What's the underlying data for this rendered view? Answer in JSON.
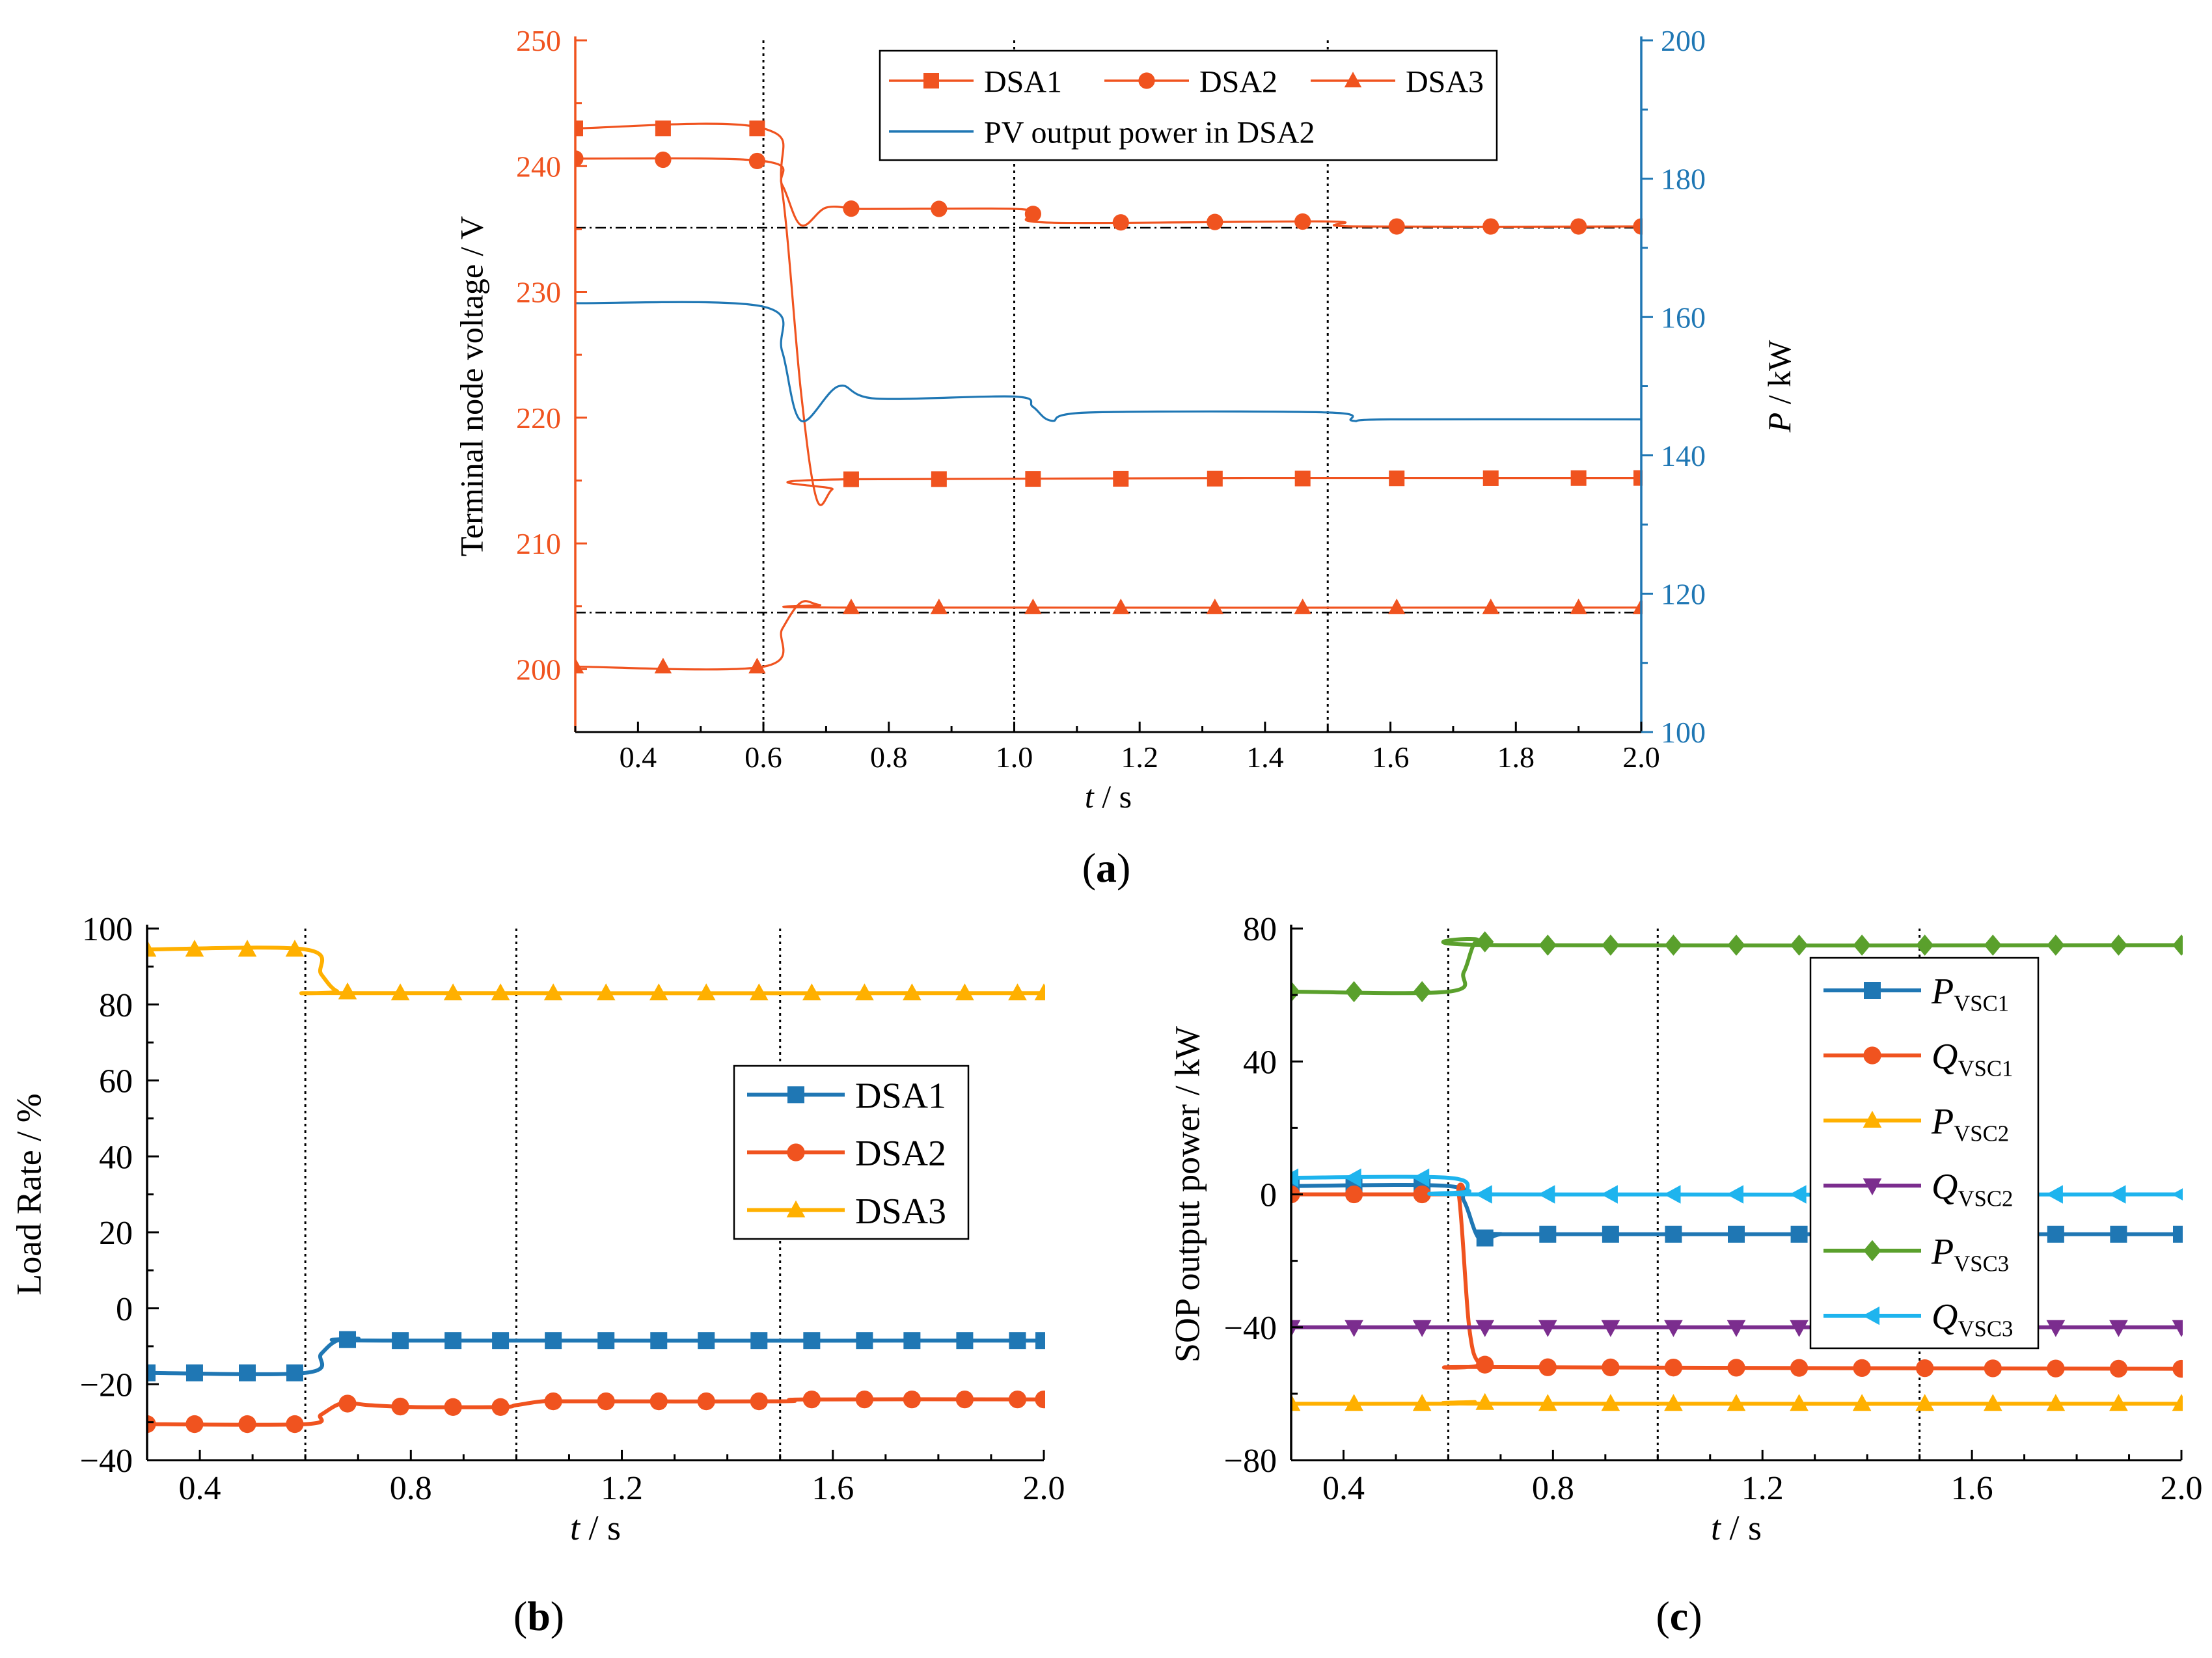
{
  "figure": {
    "colors": {
      "orange": "#F0531F",
      "blue": "#1F77B4",
      "yellow": "#FFB000",
      "purple": "#7B2D8E",
      "green": "#5AA02C",
      "cyan": "#1EB4EE",
      "black": "#000000"
    }
  },
  "chart_data": [
    {
      "id": "a",
      "type": "line",
      "panel_label": "(a)",
      "panel_letter": "a",
      "xlabel": "t / s",
      "xlabel_var": "t",
      "xlabel_unit": " / s",
      "ylabel": "Terminal node voltage / V",
      "ylabel_right": "P / kW",
      "ylabel_right_var": "P",
      "ylabel_right_unit": " / kW",
      "xlim": [
        0.3,
        2.0
      ],
      "ylim": [
        195,
        250
      ],
      "ylim_right": [
        100,
        200
      ],
      "xticks": [
        "0.4",
        "0.6",
        "0.8",
        "1.0",
        "1.2",
        "1.4",
        "1.6",
        "1.8",
        "2.0"
      ],
      "yticks": [
        "200",
        "210",
        "220",
        "230",
        "240",
        "250"
      ],
      "yticks_right": [
        "100",
        "120",
        "140",
        "160",
        "180",
        "200"
      ],
      "vlines": [
        0.6,
        1.0,
        1.5
      ],
      "hlines": [
        235.1,
        204.5
      ],
      "legend": "top-right",
      "series": [
        {
          "name": "DSA1",
          "marker": "square",
          "color": "#F0531F",
          "axis": "left",
          "points": [
            [
              0.3,
              243
            ],
            [
              0.6,
              243
            ],
            [
              0.63,
              238
            ],
            [
              0.66,
              222
            ],
            [
              0.685,
              213.5
            ],
            [
              0.71,
              214.3
            ],
            [
              0.74,
              215.1
            ],
            [
              2.0,
              215.2
            ]
          ],
          "marker_x": [
            0.3,
            0.44,
            0.59,
            0.74,
            0.88,
            1.03,
            1.17,
            1.32,
            1.46,
            1.61,
            1.76,
            1.9,
            2.0
          ]
        },
        {
          "name": "DSA2",
          "marker": "circle",
          "color": "#F0531F",
          "axis": "left",
          "points": [
            [
              0.3,
              240.6
            ],
            [
              0.6,
              240.4
            ],
            [
              0.63,
              238.5
            ],
            [
              0.66,
              235.3
            ],
            [
              0.7,
              236.7
            ],
            [
              0.75,
              236.6
            ],
            [
              0.8,
              236.6
            ],
            [
              1.0,
              236.6
            ],
            [
              1.03,
              236.2
            ],
            [
              1.06,
              235.5
            ],
            [
              1.5,
              235.6
            ],
            [
              1.54,
              235.2
            ],
            [
              2.0,
              235.2
            ]
          ],
          "marker_x": [
            0.3,
            0.44,
            0.59,
            0.74,
            0.88,
            1.03,
            1.17,
            1.32,
            1.46,
            1.61,
            1.76,
            1.9,
            2.0
          ]
        },
        {
          "name": "DSA3",
          "marker": "triangle-up",
          "color": "#F0531F",
          "axis": "left",
          "points": [
            [
              0.3,
              200.2
            ],
            [
              0.6,
              200.2
            ],
            [
              0.63,
              203.2
            ],
            [
              0.66,
              205.3
            ],
            [
              0.69,
              205.1
            ],
            [
              0.74,
              204.9
            ],
            [
              2.0,
              204.9
            ]
          ],
          "marker_x": [
            0.3,
            0.44,
            0.59,
            0.74,
            0.88,
            1.03,
            1.17,
            1.32,
            1.46,
            1.61,
            1.76,
            1.9,
            2.0
          ]
        },
        {
          "name": "PV output power in DSA2",
          "marker": "none",
          "color": "#1F77B4",
          "axis": "right",
          "points": [
            [
              0.3,
              162
            ],
            [
              0.6,
              161.5
            ],
            [
              0.63,
              155
            ],
            [
              0.66,
              145
            ],
            [
              0.72,
              150
            ],
            [
              0.78,
              148.2
            ],
            [
              1.0,
              148.5
            ],
            [
              1.03,
              147
            ],
            [
              1.06,
              145
            ],
            [
              1.12,
              146.2
            ],
            [
              1.5,
              146.2
            ],
            [
              1.54,
              145
            ],
            [
              1.6,
              145.2
            ],
            [
              2.0,
              145.2
            ]
          ]
        }
      ]
    },
    {
      "id": "b",
      "type": "line",
      "panel_label": "(b)",
      "panel_letter": "b",
      "xlabel": "t / s",
      "xlabel_var": "t",
      "xlabel_unit": " / s",
      "ylabel": "Load Rate / %",
      "xlim": [
        0.3,
        2.0
      ],
      "ylim": [
        -40,
        100
      ],
      "xticks": [
        "0.4",
        "0.8",
        "1.2",
        "1.6",
        "2.0"
      ],
      "yticks": [
        "−40",
        "−20",
        "0",
        "20",
        "40",
        "60",
        "80",
        "100"
      ],
      "vlines": [
        0.6,
        1.0,
        1.5
      ],
      "legend": "center-right",
      "series": [
        {
          "name": "DSA1",
          "marker": "square",
          "color": "#1F77B4",
          "points": [
            [
              0.3,
              -17
            ],
            [
              0.6,
              -17
            ],
            [
              0.63,
              -12
            ],
            [
              0.66,
              -8.5
            ],
            [
              0.7,
              -8
            ],
            [
              0.76,
              -8.5
            ],
            [
              2.0,
              -8.5
            ]
          ],
          "marker_x": [
            0.3,
            0.39,
            0.49,
            0.58,
            0.68,
            0.78,
            0.88,
            0.97,
            1.07,
            1.17,
            1.27,
            1.36,
            1.46,
            1.56,
            1.66,
            1.75,
            1.85,
            1.95,
            2.0
          ]
        },
        {
          "name": "DSA2",
          "marker": "circle",
          "color": "#F0531F",
          "points": [
            [
              0.3,
              -30.5
            ],
            [
              0.6,
              -30.5
            ],
            [
              0.63,
              -28
            ],
            [
              0.67,
              -25
            ],
            [
              0.72,
              -25.5
            ],
            [
              0.8,
              -26
            ],
            [
              0.97,
              -26
            ],
            [
              1.0,
              -25.5
            ],
            [
              1.05,
              -24.5
            ],
            [
              1.1,
              -24.5
            ],
            [
              1.5,
              -24.5
            ],
            [
              1.55,
              -24
            ],
            [
              2.0,
              -24
            ]
          ],
          "marker_x": [
            0.3,
            0.39,
            0.49,
            0.58,
            0.68,
            0.78,
            0.88,
            0.97,
            1.07,
            1.17,
            1.27,
            1.36,
            1.46,
            1.56,
            1.66,
            1.75,
            1.85,
            1.95,
            2.0
          ]
        },
        {
          "name": "DSA3",
          "marker": "triangle-up",
          "color": "#FFB000",
          "points": [
            [
              0.3,
              94.5
            ],
            [
              0.6,
              94.5
            ],
            [
              0.63,
              88
            ],
            [
              0.66,
              83.5
            ],
            [
              0.7,
              83
            ],
            [
              2.0,
              83
            ]
          ],
          "marker_x": [
            0.3,
            0.39,
            0.49,
            0.58,
            0.68,
            0.78,
            0.88,
            0.97,
            1.07,
            1.17,
            1.27,
            1.36,
            1.46,
            1.56,
            1.66,
            1.75,
            1.85,
            1.95,
            2.0
          ]
        }
      ]
    },
    {
      "id": "c",
      "type": "line",
      "panel_label": "(c)",
      "panel_letter": "c",
      "xlabel": "t / s",
      "xlabel_var": "t",
      "xlabel_unit": " / s",
      "ylabel": "SOP output power / kW",
      "xlim": [
        0.3,
        2.0
      ],
      "ylim": [
        -80,
        80
      ],
      "xticks": [
        "0.4",
        "0.8",
        "1.2",
        "1.6",
        "2.0"
      ],
      "yticks": [
        "−80",
        "−40",
        "0",
        "40",
        "80"
      ],
      "vlines": [
        0.6,
        1.0,
        1.5
      ],
      "legend": "top-right",
      "series": [
        {
          "name": "PVSC1",
          "var": "P",
          "sub": "VSC1",
          "marker": "square",
          "color": "#1F77B4",
          "points": [
            [
              0.3,
              2.5
            ],
            [
              0.6,
              2.5
            ],
            [
              0.63,
              -2
            ],
            [
              0.66,
              -13.5
            ],
            [
              0.7,
              -12
            ],
            [
              0.78,
              -12
            ],
            [
              2.0,
              -12
            ]
          ],
          "marker_x": [
            0.3,
            0.42,
            0.55,
            0.67,
            0.79,
            0.91,
            1.03,
            1.15,
            1.27,
            1.39,
            1.51,
            1.64,
            1.76,
            1.88,
            2.0
          ]
        },
        {
          "name": "QVSC1",
          "var": "Q",
          "sub": "VSC1",
          "marker": "circle",
          "color": "#F0531F",
          "points": [
            [
              0.3,
              0
            ],
            [
              0.6,
              0
            ],
            [
              0.62,
              0
            ],
            [
              0.64,
              -40
            ],
            [
              0.66,
              -51
            ],
            [
              0.7,
              -52
            ],
            [
              2.0,
              -52.5
            ]
          ],
          "marker_x": [
            0.3,
            0.42,
            0.55,
            0.67,
            0.79,
            0.91,
            1.03,
            1.15,
            1.27,
            1.39,
            1.51,
            1.64,
            1.76,
            1.88,
            2.0
          ]
        },
        {
          "name": "PVSC2",
          "var": "P",
          "sub": "VSC2",
          "marker": "triangle-up",
          "color": "#FFB000",
          "points": [
            [
              0.3,
              -63
            ],
            [
              0.6,
              -63
            ],
            [
              0.65,
              -62.5
            ],
            [
              0.7,
              -63
            ],
            [
              2.0,
              -63
            ]
          ],
          "marker_x": [
            0.3,
            0.42,
            0.55,
            0.67,
            0.79,
            0.91,
            1.03,
            1.15,
            1.27,
            1.39,
            1.51,
            1.64,
            1.76,
            1.88,
            2.0
          ]
        },
        {
          "name": "QVSC2",
          "var": "Q",
          "sub": "VSC2",
          "marker": "triangle-down",
          "color": "#7B2D8E",
          "points": [
            [
              0.3,
              -40
            ],
            [
              2.0,
              -40
            ]
          ],
          "marker_x": [
            0.3,
            0.42,
            0.55,
            0.67,
            0.79,
            0.91,
            1.03,
            1.15,
            1.27,
            1.39,
            1.51,
            1.64,
            1.76,
            1.88,
            2.0
          ]
        },
        {
          "name": "PVSC3",
          "var": "P",
          "sub": "VSC3",
          "marker": "diamond",
          "color": "#5AA02C",
          "points": [
            [
              0.3,
              61
            ],
            [
              0.6,
              61
            ],
            [
              0.63,
              67
            ],
            [
              0.655,
              76.5
            ],
            [
              0.7,
              75
            ],
            [
              2.0,
              75
            ]
          ],
          "marker_x": [
            0.3,
            0.42,
            0.55,
            0.67,
            0.79,
            0.91,
            1.03,
            1.15,
            1.27,
            1.39,
            1.51,
            1.64,
            1.76,
            1.88,
            2.0
          ]
        },
        {
          "name": "QVSC3",
          "var": "Q",
          "sub": "VSC3",
          "marker": "triangle-left",
          "color": "#1EB4EE",
          "points": [
            [
              0.3,
              5
            ],
            [
              0.6,
              5
            ],
            [
              0.64,
              1
            ],
            [
              0.67,
              0
            ],
            [
              2.0,
              0
            ]
          ],
          "marker_x": [
            0.3,
            0.42,
            0.55,
            0.67,
            0.79,
            0.91,
            1.03,
            1.15,
            1.27,
            1.39,
            1.51,
            1.64,
            1.76,
            1.88,
            2.0
          ]
        }
      ]
    }
  ]
}
